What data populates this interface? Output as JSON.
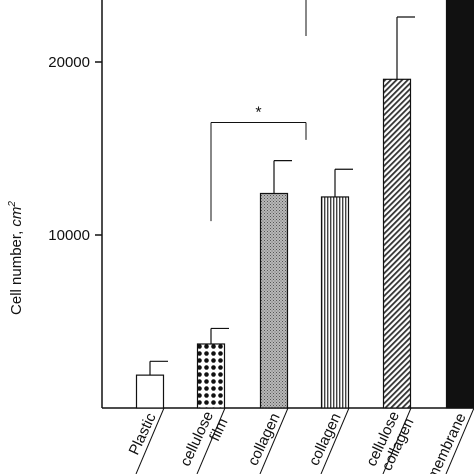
{
  "chart_data": {
    "type": "bar",
    "title": "",
    "xlabel": "",
    "ylabel": "Cell number, cm",
    "ylabel_sup": "2",
    "ylim": [
      0,
      23500
    ],
    "yticks": [
      10000,
      20000
    ],
    "ytick_labels": [
      "10000",
      "20000"
    ],
    "grid": false,
    "legend": "none",
    "categories": [
      "Plastic",
      "cellulose film",
      "collagen",
      "collagen",
      "cellulose collagen",
      "membrane"
    ],
    "category_lines": [
      [
        "Plastic"
      ],
      [
        "cellulose",
        "film"
      ],
      [
        "collagen"
      ],
      [
        "collagen"
      ],
      [
        "cellulose",
        "collagen"
      ],
      [
        "membrane"
      ]
    ],
    "values": [
      1900,
      3700,
      12400,
      12200,
      19000,
      24000
    ],
    "errors": [
      800,
      900,
      1900,
      1600,
      3600,
      0
    ],
    "patterns": [
      "white",
      "dots",
      "fine-gray",
      "vertical-lines",
      "diagonal",
      "solid-black"
    ],
    "annotations": [
      {
        "text": "*",
        "from_bar": 1,
        "to_bar": 2,
        "bracket_y": 16500,
        "left_tick_bottom": 10800,
        "right_tick_bottom": 15500
      },
      {
        "text": "",
        "from_bar": 2,
        "to_bar": 2,
        "bracket_y": 24000,
        "left_tick_bottom": 21500,
        "right_tick_bottom": 21500
      }
    ],
    "colors": {
      "stroke": "#111111",
      "bar_fill": "#ffffff",
      "solid": "#111111",
      "gray": "#9a9a9a"
    }
  }
}
